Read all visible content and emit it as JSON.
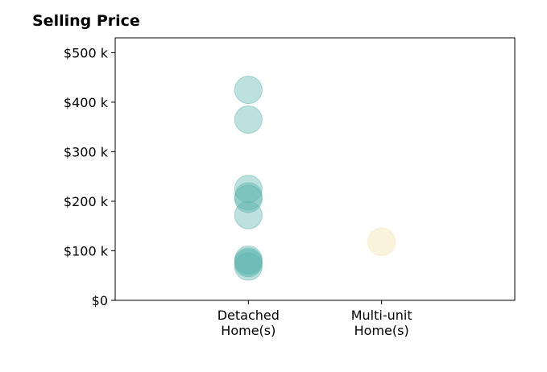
{
  "chart_data": {
    "type": "scatter",
    "title": "Selling Price",
    "xlabel": "",
    "ylabel": "",
    "categories": [
      "Detached\nHome(s)",
      "Multi-unit\nHome(s)"
    ],
    "xlim": [
      -1,
      2
    ],
    "ylim": [
      0,
      530000
    ],
    "yticks": [
      0,
      100000,
      200000,
      300000,
      400000,
      500000
    ],
    "ytick_labels": [
      "$0",
      "$100 k",
      "$200 k",
      "$300 k",
      "$400 k",
      "$500 k"
    ],
    "grid": false,
    "legend": "none",
    "series": [
      {
        "category": "Detached\nHome(s)",
        "color": "#5ab4ac",
        "values": [
          425000,
          365000,
          225000,
          210000,
          205000,
          172000,
          82000,
          78000,
          75000,
          68000
        ]
      },
      {
        "category": "Multi-unit\nHome(s)",
        "color": "#f6dfa8",
        "values": [
          118000
        ]
      }
    ]
  }
}
